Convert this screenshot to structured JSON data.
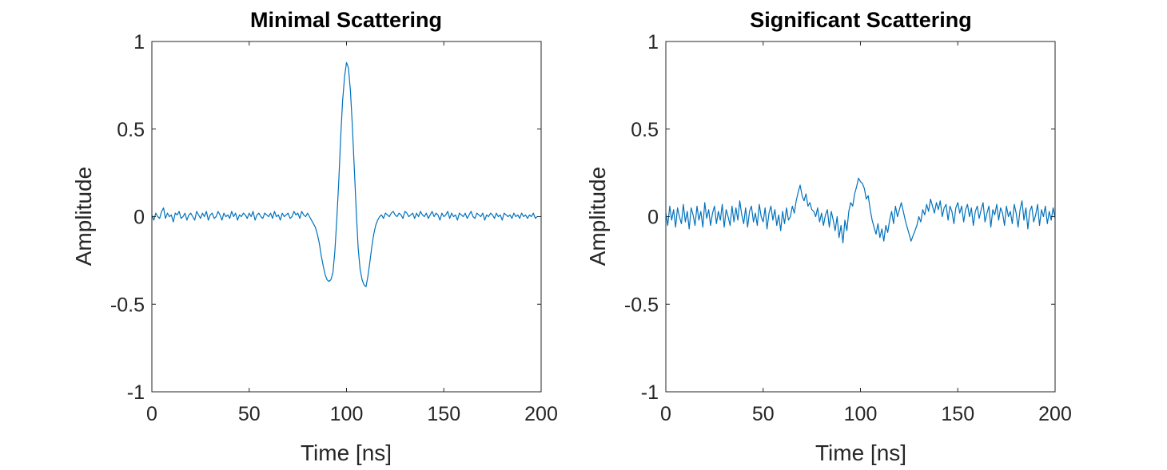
{
  "chart_data": [
    {
      "type": "line",
      "title": "Minimal Scattering",
      "xlabel": "Time [ns]",
      "ylabel": "Amplitude",
      "xlim": [
        0,
        200
      ],
      "ylim": [
        -1,
        1
      ],
      "xticks": [
        0,
        50,
        100,
        150,
        200
      ],
      "xtick_labels": [
        "0",
        "50",
        "100",
        "150",
        "200"
      ],
      "yticks": [
        -1,
        -0.5,
        0,
        0.5,
        1
      ],
      "ytick_labels": [
        "-1",
        "-0.5",
        "0",
        "0.5",
        "1"
      ],
      "grid": false,
      "color": "#0072BD",
      "x_step": 1,
      "values": [
        0.01,
        -0.02,
        0.02,
        0.0,
        -0.01,
        0.03,
        0.05,
        -0.01,
        0.02,
        0.0,
        0.01,
        -0.03,
        0.02,
        0.01,
        0.03,
        -0.01,
        0.0,
        0.02,
        -0.02,
        0.01,
        0.02,
        0.0,
        -0.02,
        0.03,
        0.01,
        -0.01,
        0.02,
        0.0,
        0.03,
        -0.02,
        0.01,
        0.02,
        -0.01,
        0.0,
        0.03,
        0.01,
        -0.02,
        0.02,
        0.0,
        0.01,
        -0.01,
        0.03,
        0.0,
        0.02,
        -0.02,
        0.01,
        0.0,
        0.02,
        0.01,
        -0.01,
        0.02,
        0.0,
        0.03,
        -0.02,
        0.01,
        0.02,
        0.0,
        -0.01,
        0.02,
        0.01,
        0.0,
        0.02,
        -0.01,
        0.03,
        0.0,
        0.01,
        -0.02,
        0.02,
        0.0,
        0.01,
        0.02,
        -0.01,
        0.0,
        0.03,
        0.01,
        0.02,
        -0.01,
        0.03,
        0.01,
        0.0,
        0.02,
        0.0,
        -0.02,
        -0.04,
        -0.06,
        -0.1,
        -0.15,
        -0.22,
        -0.28,
        -0.33,
        -0.36,
        -0.37,
        -0.36,
        -0.32,
        -0.2,
        -0.02,
        0.2,
        0.45,
        0.66,
        0.8,
        0.88,
        0.85,
        0.72,
        0.52,
        0.28,
        0.03,
        -0.18,
        -0.3,
        -0.36,
        -0.39,
        -0.4,
        -0.34,
        -0.26,
        -0.17,
        -0.1,
        -0.05,
        -0.02,
        0.0,
        0.01,
        -0.01,
        0.02,
        0.01,
        0.0,
        0.02,
        0.03,
        0.01,
        0.0,
        0.02,
        0.01,
        -0.01,
        0.03,
        0.02,
        0.0,
        0.01,
        0.02,
        -0.01,
        0.02,
        0.0,
        0.03,
        0.01,
        0.0,
        0.02,
        -0.01,
        0.01,
        0.03,
        0.0,
        0.02,
        0.01,
        -0.02,
        0.02,
        0.0,
        0.01,
        0.03,
        -0.01,
        0.02,
        0.0,
        0.01,
        -0.02,
        0.02,
        0.01,
        0.0,
        0.02,
        -0.01,
        0.01,
        0.03,
        0.0,
        -0.01,
        0.02,
        0.01,
        0.0,
        0.02,
        -0.02,
        0.01,
        0.0,
        0.02,
        0.01,
        -0.01,
        0.02,
        0.0,
        0.01,
        -0.02,
        0.02,
        0.01,
        0.0,
        0.01,
        -0.01,
        0.02,
        0.0,
        0.01,
        -0.01,
        0.02,
        0.0,
        0.01,
        -0.01,
        0.01,
        0.0,
        0.02,
        -0.01,
        0.0
      ]
    },
    {
      "type": "line",
      "title": "Significant Scattering",
      "xlabel": "Time [ns]",
      "ylabel": "Amplitude",
      "xlim": [
        0,
        200
      ],
      "ylim": [
        -1,
        1
      ],
      "xticks": [
        0,
        50,
        100,
        150,
        200
      ],
      "xtick_labels": [
        "0",
        "50",
        "100",
        "150",
        "200"
      ],
      "yticks": [
        -1,
        -0.5,
        0,
        0.5,
        1
      ],
      "ytick_labels": [
        "-1",
        "-0.5",
        "0",
        "0.5",
        "1"
      ],
      "grid": false,
      "color": "#0072BD",
      "x_step": 1,
      "values": [
        0.02,
        -0.05,
        0.06,
        -0.02,
        0.04,
        -0.06,
        0.05,
        0.0,
        -0.04,
        0.07,
        -0.03,
        0.03,
        -0.07,
        0.05,
        0.01,
        -0.05,
        0.06,
        -0.02,
        0.03,
        -0.06,
        0.08,
        -0.01,
        0.04,
        -0.05,
        0.02,
        0.06,
        -0.04,
        0.03,
        -0.02,
        0.07,
        -0.06,
        0.04,
        0.0,
        -0.05,
        0.06,
        -0.03,
        0.05,
        -0.02,
        0.09,
        0.01,
        -0.04,
        0.05,
        -0.06,
        0.03,
        0.06,
        -0.03,
        0.02,
        -0.05,
        0.07,
        0.0,
        -0.03,
        0.05,
        -0.07,
        0.02,
        0.06,
        -0.02,
        0.04,
        -0.05,
        0.01,
        -0.08,
        0.03,
        -0.04,
        0.05,
        -0.02,
        0.0,
        0.06,
        0.02,
        0.09,
        0.14,
        0.18,
        0.12,
        0.09,
        0.13,
        0.06,
        0.08,
        0.04,
        0.03,
        0.0,
        0.05,
        -0.03,
        0.02,
        -0.05,
        0.01,
        0.04,
        -0.06,
        0.03,
        -0.02,
        -0.08,
        0.0,
        -0.12,
        -0.05,
        -0.15,
        -0.02,
        -0.08,
        0.03,
        0.08,
        0.06,
        0.13,
        0.17,
        0.22,
        0.2,
        0.19,
        0.16,
        0.1,
        0.12,
        0.04,
        -0.02,
        -0.06,
        -0.1,
        -0.04,
        -0.12,
        -0.07,
        -0.14,
        -0.05,
        -0.09,
        -0.02,
        0.03,
        -0.04,
        0.06,
        0.0,
        0.04,
        0.08,
        0.03,
        -0.02,
        -0.06,
        -0.1,
        -0.14,
        -0.11,
        -0.08,
        -0.05,
        0.0,
        -0.03,
        0.04,
        0.01,
        0.07,
        0.03,
        0.1,
        0.06,
        0.02,
        0.08,
        0.04,
        0.09,
        0.0,
        0.05,
        0.07,
        -0.02,
        0.06,
        0.03,
        -0.04,
        0.05,
        0.08,
        0.02,
        0.06,
        -0.03,
        0.04,
        0.07,
        0.0,
        0.05,
        -0.05,
        0.03,
        0.06,
        -0.01,
        0.04,
        0.08,
        -0.03,
        0.02,
        0.06,
        -0.06,
        0.04,
        0.01,
        0.07,
        -0.02,
        0.05,
        0.02,
        -0.05,
        0.06,
        0.0,
        0.03,
        -0.04,
        0.07,
        0.02,
        -0.06,
        0.04,
        0.09,
        -0.02,
        0.05,
        -0.07,
        0.03,
        0.06,
        -0.03,
        0.01,
        0.07,
        -0.05,
        0.04,
        0.0,
        0.06,
        -0.04,
        0.03,
        -0.02,
        0.05,
        -0.01
      ]
    }
  ]
}
